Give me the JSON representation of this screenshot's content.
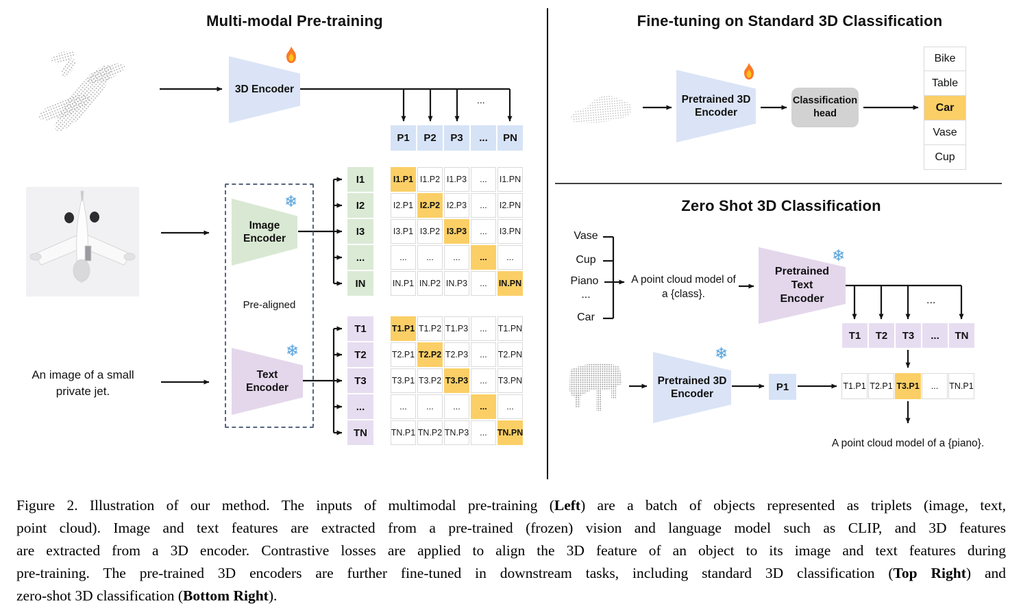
{
  "pretraining": {
    "title": "Multi-modal Pre-training",
    "encoder3d_label": "3D Encoder",
    "image_encoder_label_1": "Image",
    "image_encoder_label_2": "Encoder",
    "text_encoder_label_1": "Text",
    "text_encoder_label_2": "Encoder",
    "prealigned_label": "Pre-aligned",
    "image_caption_line1": "An image of a small",
    "image_caption_line2": "private jet.",
    "ellipsis": "...",
    "p_row": [
      "P1",
      "P2",
      "P3",
      "...",
      "PN"
    ],
    "i_col": [
      "I1",
      "I2",
      "I3",
      "...",
      "IN"
    ],
    "t_col": [
      "T1",
      "T2",
      "T3",
      "...",
      "TN"
    ],
    "i_matrix_rows": [
      [
        "I1.P1",
        "I1.P2",
        "I1.P3",
        "...",
        "I1.PN"
      ],
      [
        "I2.P1",
        "I2.P2",
        "I2.P3",
        "...",
        "I2.PN"
      ],
      [
        "I3.P1",
        "I3.P2",
        "I3.P3",
        "...",
        "I3.PN"
      ],
      [
        "...",
        "...",
        "...",
        "...",
        "..."
      ],
      [
        "IN.P1",
        "IN.P2",
        "IN.P3",
        "...",
        "IN.PN"
      ]
    ],
    "t_matrix_rows": [
      [
        "T1.P1",
        "T1.P2",
        "T1.P3",
        "...",
        "T1.PN"
      ],
      [
        "T2.P1",
        "T2.P2",
        "T2.P3",
        "...",
        "T2.PN"
      ],
      [
        "T3.P1",
        "T3.P2",
        "T3.P3",
        "...",
        "T3.PN"
      ],
      [
        "...",
        "...",
        "...",
        "...",
        "..."
      ],
      [
        "TN.P1",
        "TN.P2",
        "TN.P3",
        "...",
        "TN.PN"
      ]
    ]
  },
  "finetune": {
    "title": "Fine-tuning on Standard 3D Classification",
    "encoder_label_1": "Pretrained 3D",
    "encoder_label_2": "Encoder",
    "head_label_1": "Classification",
    "head_label_2": "head",
    "classes": [
      "Bike",
      "Table",
      "Car",
      "Vase",
      "Cup"
    ],
    "predicted_class": "Car"
  },
  "zeroshot": {
    "title": "Zero Shot 3D Classification",
    "candidate_classes": [
      "Vase",
      "Cup",
      "Piano",
      "...",
      "Car"
    ],
    "prompt_line1": "A point cloud model of",
    "prompt_line2": "a {class}.",
    "text_encoder_label_1": "Pretrained Text",
    "text_encoder_label_2": "Encoder",
    "encoder3d_label_1": "Pretrained 3D",
    "encoder3d_label_2": "Encoder",
    "t_row": [
      "T1",
      "T2",
      "T3",
      "...",
      "TN"
    ],
    "p_cell": "P1",
    "similarity_row": [
      "T1.P1",
      "T2.P1",
      "T3.P1",
      "...",
      "TN.P1"
    ],
    "similarity_highlight": "T3.P1",
    "result_text": "A point cloud model of a {piano}.",
    "ellipsis": "..."
  },
  "caption": {
    "lines": [
      [
        {
          "t": "Figure 2. Illustration of our method. The inputs of multimodal pre-training ("
        },
        {
          "t": "Left",
          "b": true
        },
        {
          "t": ") are a batch of objects represented as triplets (image, text,"
        }
      ],
      [
        {
          "t": "point cloud). Image and text features are extracted from a pre-trained (frozen) vision and language model such as CLIP, and 3D features"
        }
      ],
      [
        {
          "t": "are extracted from a 3D encoder. Contrastive losses are applied to align the 3D feature of an object to its image and text features during"
        }
      ],
      [
        {
          "t": "pre-training. The pre-trained 3D encoders are further fine-tuned in downstream tasks, including standard 3D classification ("
        },
        {
          "t": "Top Right",
          "b": true
        },
        {
          "t": ") and"
        }
      ],
      [
        {
          "t": "zero-shot 3D classification ("
        },
        {
          "t": "Bottom Right",
          "b": true
        },
        {
          "t": ")."
        }
      ]
    ]
  },
  "colors": {
    "encoder_blue": "#dbe4f6",
    "encoder_green": "#d9e8d3",
    "encoder_purple": "#e4d7ec",
    "cell_blue": "#d6e3f6",
    "cell_green": "#daead5",
    "cell_purple": "#e7ddf1",
    "highlight_orange": "#fbcf66",
    "head_gray": "#d2d2d2",
    "border_gray": "#d9d9d9"
  }
}
